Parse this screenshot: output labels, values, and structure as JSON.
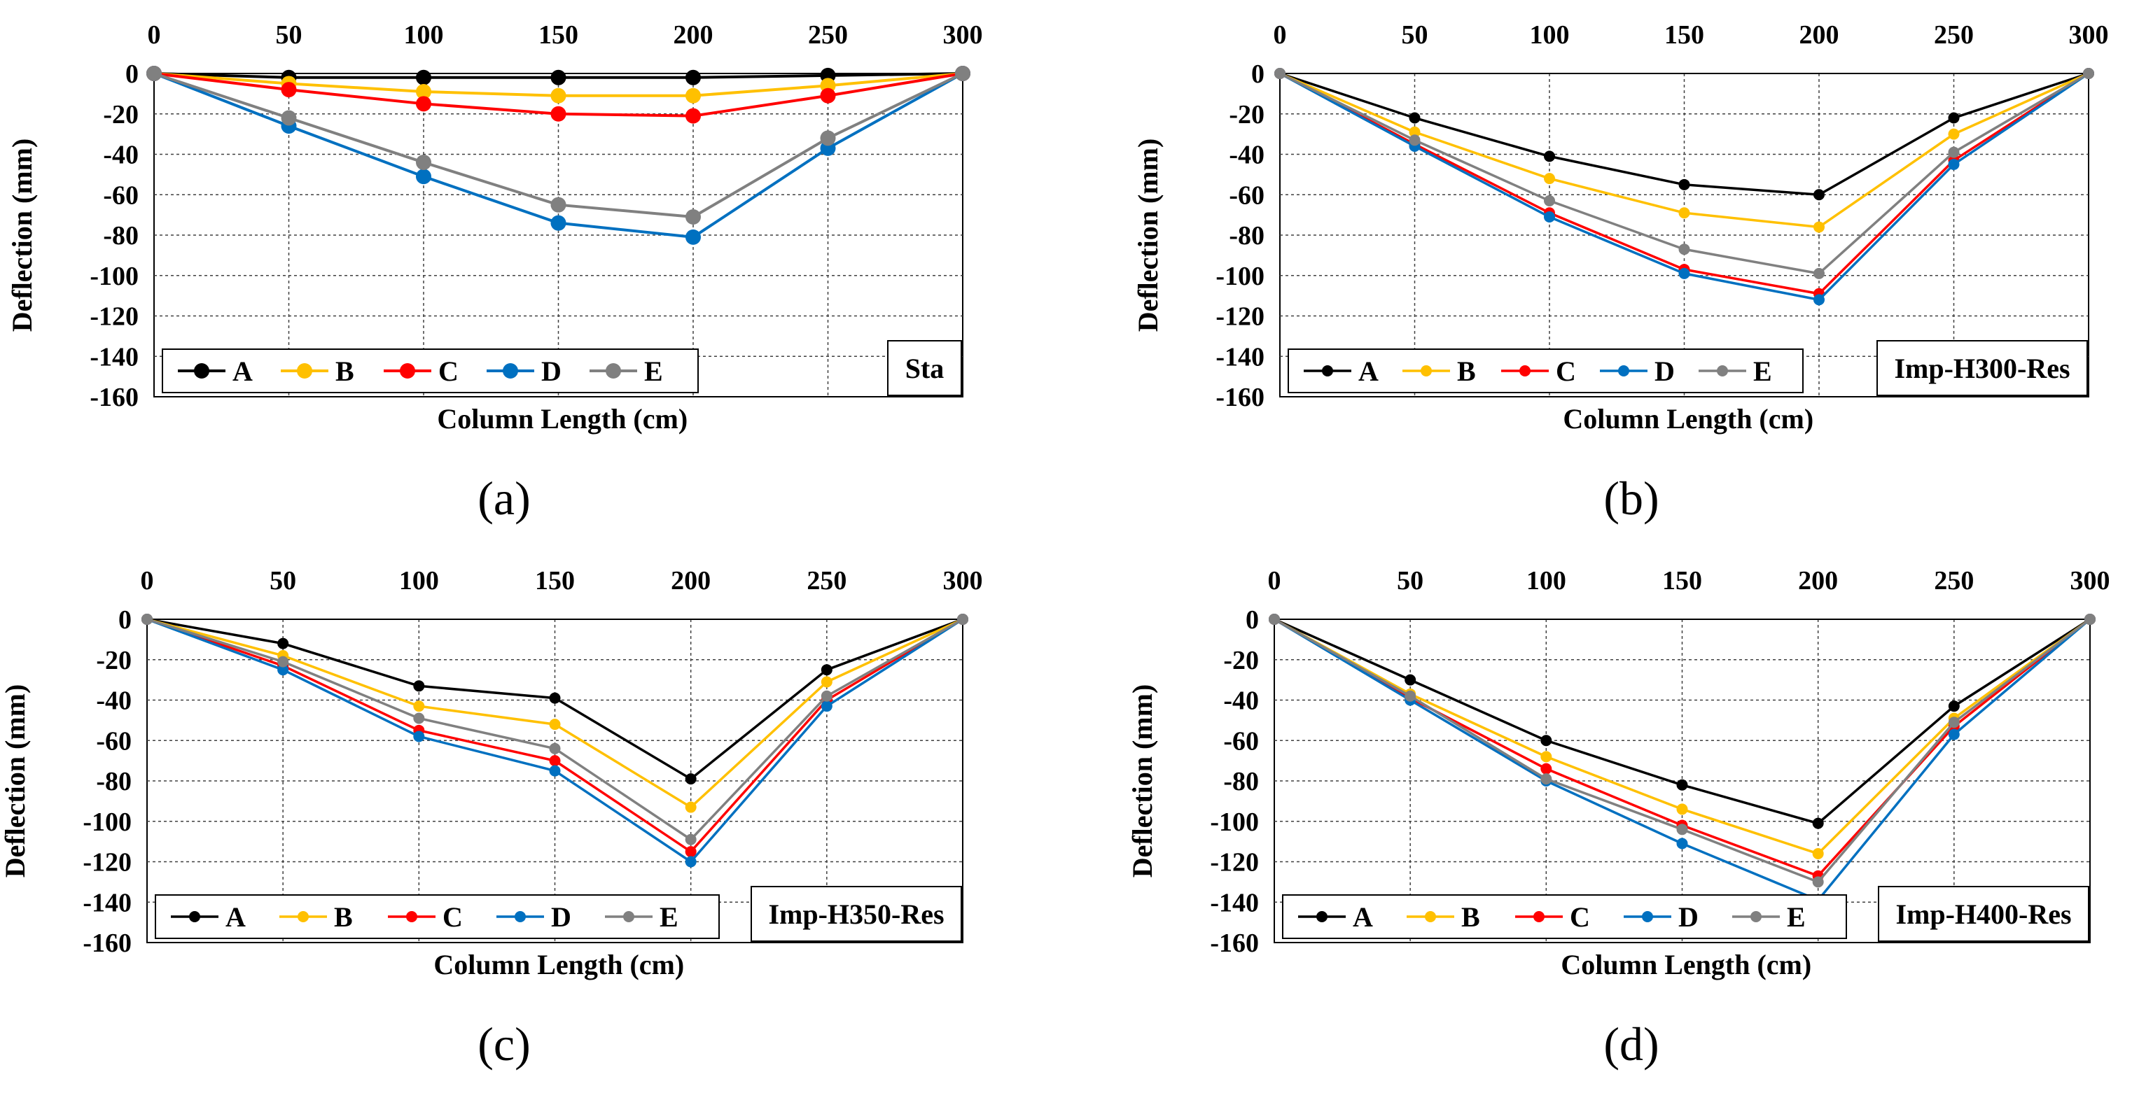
{
  "colors": {
    "A": "#000000",
    "B": "#FFC000",
    "C": "#FF0000",
    "D": "#0070C0",
    "E": "#808080"
  },
  "chart_data": [
    {
      "type": "line",
      "panel": "a",
      "caption": "(a)",
      "tag": "Sta",
      "xlabel": "Column Length (cm)",
      "ylabel": "Deflection (mm)",
      "x": [
        0,
        50,
        100,
        150,
        200,
        250,
        300
      ],
      "xticks": [
        "0",
        "50",
        "100",
        "150",
        "200",
        "250",
        "300"
      ],
      "yticks": [
        "0",
        "-20",
        "-40",
        "-60",
        "-80",
        "-100",
        "-120",
        "-140",
        "-160"
      ],
      "ylim": [
        -160,
        0
      ],
      "grid": true,
      "legend_position": "bottom-left",
      "series": [
        {
          "name": "A",
          "values": [
            0,
            -2,
            -2,
            -2,
            -2,
            -1,
            0
          ]
        },
        {
          "name": "B",
          "values": [
            0,
            -5,
            -9,
            -11,
            -11,
            -6,
            0
          ]
        },
        {
          "name": "C",
          "values": [
            0,
            -8,
            -15,
            -20,
            -21,
            -11,
            0
          ]
        },
        {
          "name": "D",
          "values": [
            0,
            -26,
            -51,
            -74,
            -81,
            -37,
            0
          ]
        },
        {
          "name": "E",
          "values": [
            0,
            -22,
            -44,
            -65,
            -71,
            -32,
            0
          ]
        }
      ]
    },
    {
      "type": "line",
      "panel": "b",
      "caption": "(b)",
      "tag": "Imp-H300-Res",
      "xlabel": "Column Length (cm)",
      "ylabel": "Deflection (mm)",
      "x": [
        0,
        50,
        100,
        150,
        200,
        250,
        300
      ],
      "xticks": [
        "0",
        "50",
        "100",
        "150",
        "200",
        "250",
        "300"
      ],
      "yticks": [
        "0",
        "-20",
        "-40",
        "-60",
        "-80",
        "-100",
        "-120",
        "-140",
        "-160"
      ],
      "ylim": [
        -160,
        0
      ],
      "grid": true,
      "legend_position": "bottom-left",
      "series": [
        {
          "name": "A",
          "values": [
            0,
            -22,
            -41,
            -55,
            -60,
            -22,
            0
          ]
        },
        {
          "name": "B",
          "values": [
            0,
            -29,
            -52,
            -69,
            -76,
            -30,
            0
          ]
        },
        {
          "name": "C",
          "values": [
            0,
            -35,
            -69,
            -97,
            -109,
            -43,
            0
          ]
        },
        {
          "name": "D",
          "values": [
            0,
            -36,
            -71,
            -99,
            -112,
            -45,
            0
          ]
        },
        {
          "name": "E",
          "values": [
            0,
            -33,
            -63,
            -87,
            -99,
            -39,
            0
          ]
        }
      ]
    },
    {
      "type": "line",
      "panel": "c",
      "caption": "(c)",
      "tag": "Imp-H350-Res",
      "xlabel": "Column Length (cm)",
      "ylabel": "Deflection (mm)",
      "x": [
        0,
        50,
        100,
        150,
        200,
        250,
        300
      ],
      "xticks": [
        "0",
        "50",
        "100",
        "150",
        "200",
        "250",
        "300"
      ],
      "yticks": [
        "0",
        "-20",
        "-40",
        "-60",
        "-80",
        "-100",
        "-120",
        "-140",
        "-160"
      ],
      "ylim": [
        -160,
        0
      ],
      "grid": true,
      "legend_position": "bottom-left",
      "series": [
        {
          "name": "A",
          "values": [
            0,
            -12,
            -33,
            -39,
            -79,
            -25,
            0
          ]
        },
        {
          "name": "B",
          "values": [
            0,
            -18,
            -43,
            -52,
            -93,
            -31,
            0
          ]
        },
        {
          "name": "C",
          "values": [
            0,
            -23,
            -55,
            -70,
            -115,
            -40,
            0
          ]
        },
        {
          "name": "D",
          "values": [
            0,
            -25,
            -58,
            -75,
            -120,
            -43,
            0
          ]
        },
        {
          "name": "E",
          "values": [
            0,
            -21,
            -49,
            -64,
            -109,
            -38,
            0
          ]
        }
      ]
    },
    {
      "type": "line",
      "panel": "d",
      "caption": "(d)",
      "tag": "Imp-H400-Res",
      "xlabel": "Column Length (cm)",
      "ylabel": "Deflection (mm)",
      "x": [
        0,
        50,
        100,
        150,
        200,
        250,
        300
      ],
      "xticks": [
        "0",
        "50",
        "100",
        "150",
        "200",
        "250",
        "300"
      ],
      "yticks": [
        "0",
        "-20",
        "-40",
        "-60",
        "-80",
        "-100",
        "-120",
        "-140",
        "-160"
      ],
      "ylim": [
        -160,
        0
      ],
      "grid": true,
      "legend_position": "bottom-left",
      "series": [
        {
          "name": "A",
          "values": [
            0,
            -30,
            -60,
            -82,
            -101,
            -43,
            0
          ]
        },
        {
          "name": "B",
          "values": [
            0,
            -37,
            -68,
            -94,
            -116,
            -49,
            0
          ]
        },
        {
          "name": "C",
          "values": [
            0,
            -39,
            -74,
            -102,
            -127,
            -53,
            0
          ]
        },
        {
          "name": "D",
          "values": [
            0,
            -40,
            -80,
            -111,
            -139,
            -57,
            0
          ]
        },
        {
          "name": "E",
          "values": [
            0,
            -38,
            -79,
            -104,
            -130,
            -51,
            0
          ]
        }
      ]
    }
  ]
}
